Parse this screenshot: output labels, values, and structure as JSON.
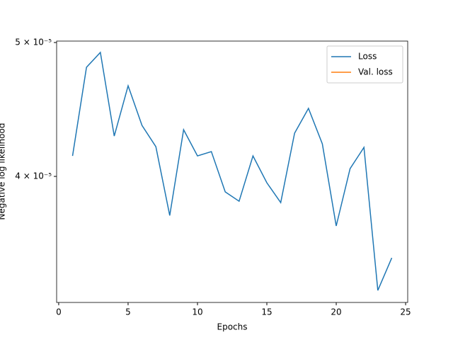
{
  "chart_data": {
    "type": "line",
    "x": [
      1,
      2,
      3,
      4,
      5,
      6,
      7,
      8,
      9,
      10,
      11,
      12,
      13,
      14,
      15,
      16,
      17,
      18,
      19,
      20,
      21,
      22,
      23,
      24
    ],
    "series": [
      {
        "name": "Loss",
        "color": "#1f77b4",
        "values": [
          4.139e-05,
          4.798e-05,
          4.918e-05,
          4.278e-05,
          4.652e-05,
          4.355e-05,
          4.203e-05,
          3.748e-05,
          4.324e-05,
          4.139e-05,
          4.169e-05,
          3.898e-05,
          3.838e-05,
          4.139e-05,
          3.958e-05,
          3.829e-05,
          4.299e-05,
          4.48e-05,
          4.223e-05,
          3.683e-05,
          4.052e-05,
          4.198e-05,
          3.308e-05,
          3.492e-05
        ]
      },
      {
        "name": "Val. loss",
        "color": "#ff7f0e",
        "values": [
          null,
          null,
          null,
          null,
          null,
          null,
          null,
          null,
          null,
          null,
          null,
          null,
          null,
          null,
          null,
          null,
          null,
          null,
          null,
          null,
          null,
          null,
          null,
          null
        ]
      }
    ],
    "xlabel": "Epochs",
    "ylabel": "Negative log likelihood",
    "xlim": [
      -0.15,
      25.15
    ],
    "xticks": [
      0,
      5,
      10,
      15,
      20,
      25
    ],
    "ylim": [
      3.242e-05,
      5.012e-05
    ],
    "ylog": true,
    "yticks": [
      {
        "value": 4e-05,
        "label": "4 × 10⁻⁵"
      },
      {
        "value": 5e-05,
        "label": "5 × 10⁻⁵"
      }
    ],
    "legend": "upper right"
  }
}
